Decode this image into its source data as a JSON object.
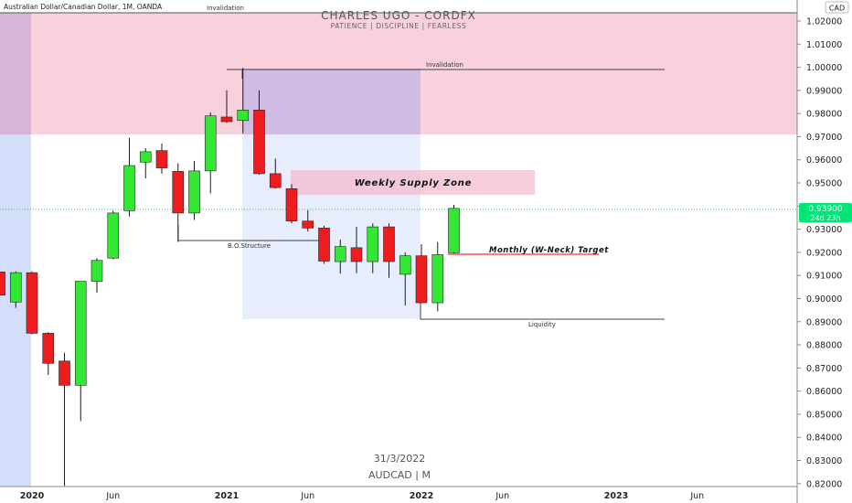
{
  "header": {
    "symbol_title": "Australian Dollar/Canadian Dollar, 1M, OANDA",
    "watermark_title": "CHARLES UGO - CORDFX",
    "watermark_subtitle": "PATIENCE   |   DISCIPLINE   |   FEARLESS",
    "currency_badge": "CAD"
  },
  "footer": {
    "date": "31/3/2022",
    "symbol": "AUDCAD  |  M"
  },
  "price_label": {
    "price": "0.93900",
    "countdown": "24d 23h",
    "color": "#00e676"
  },
  "colors": {
    "up": "#33e833",
    "down": "#ee1c1c",
    "wick": "#1a1a1a",
    "supply_zone_fill": "#f5b8cb",
    "blue_zone_fill": "#d3defa",
    "purple_overlap": "#d9b8e0"
  },
  "annotations": {
    "invalidation_top": "Invalidation",
    "invalidation_mid": "Invalidation",
    "weekly_supply_zone": "Weekly Supply Zone",
    "bo_structure": "B.O.Structure",
    "monthly_target": "Monthly (W-Neck) Target",
    "liquidity": "Liquidity"
  },
  "chart_data": {
    "type": "candlestick",
    "title": "Australian Dollar/Canadian Dollar, 1M, OANDA",
    "y_axis": {
      "ticks": [
        1.02,
        1.01,
        1.0,
        0.99,
        0.98,
        0.97,
        0.96,
        0.95,
        0.94,
        0.93,
        0.92,
        0.91,
        0.9,
        0.89,
        0.88,
        0.87,
        0.86,
        0.85,
        0.84,
        0.83,
        0.82
      ],
      "range": [
        0.8175,
        1.0355
      ]
    },
    "x_axis": {
      "labels": [
        "2020",
        "Jun",
        "2021",
        "Jun",
        "2022",
        "Jun",
        "2023",
        "Jun"
      ],
      "label_months": [
        24,
        29,
        36,
        41,
        48,
        53,
        60,
        65
      ]
    },
    "candles": [
      {
        "m": 22,
        "open": 0.9115,
        "high": 0.9135,
        "low": 0.898,
        "close": 0.9015
      },
      {
        "m": 23,
        "open": 0.8985,
        "high": 0.9118,
        "low": 0.896,
        "close": 0.9112
      },
      {
        "m": 24,
        "open": 0.9112,
        "high": 0.9118,
        "low": 0.8845,
        "close": 0.885
      },
      {
        "m": 25,
        "open": 0.885,
        "high": 0.8855,
        "low": 0.867,
        "close": 0.872
      },
      {
        "m": 26,
        "open": 0.873,
        "high": 0.8765,
        "low": 0.819,
        "close": 0.8625
      },
      {
        "m": 27,
        "open": 0.8625,
        "high": 0.9075,
        "low": 0.847,
        "close": 0.9075
      },
      {
        "m": 28,
        "open": 0.9075,
        "high": 0.9175,
        "low": 0.9025,
        "close": 0.9165
      },
      {
        "m": 29,
        "open": 0.9175,
        "high": 0.938,
        "low": 0.917,
        "close": 0.937
      },
      {
        "m": 30,
        "open": 0.938,
        "high": 0.9695,
        "low": 0.9355,
        "close": 0.9575
      },
      {
        "m": 31,
        "open": 0.959,
        "high": 0.965,
        "low": 0.952,
        "close": 0.9635
      },
      {
        "m": 32,
        "open": 0.964,
        "high": 0.967,
        "low": 0.954,
        "close": 0.9565
      },
      {
        "m": 33,
        "open": 0.955,
        "high": 0.9585,
        "low": 0.9245,
        "close": 0.937
      },
      {
        "m": 34,
        "open": 0.937,
        "high": 0.9595,
        "low": 0.934,
        "close": 0.9552
      },
      {
        "m": 35,
        "open": 0.9552,
        "high": 0.9805,
        "low": 0.9455,
        "close": 0.979
      },
      {
        "m": 36,
        "open": 0.9785,
        "high": 0.99,
        "low": 0.976,
        "close": 0.9765
      },
      {
        "m": 37,
        "open": 0.977,
        "high": 0.9998,
        "low": 0.9715,
        "close": 0.9815
      },
      {
        "m": 38,
        "open": 0.9815,
        "high": 0.99,
        "low": 0.9535,
        "close": 0.954
      },
      {
        "m": 39,
        "open": 0.954,
        "high": 0.9605,
        "low": 0.9475,
        "close": 0.948
      },
      {
        "m": 40,
        "open": 0.9475,
        "high": 0.9495,
        "low": 0.9325,
        "close": 0.9335
      },
      {
        "m": 41,
        "open": 0.9335,
        "high": 0.9382,
        "low": 0.929,
        "close": 0.9305
      },
      {
        "m": 42,
        "open": 0.9305,
        "high": 0.9315,
        "low": 0.915,
        "close": 0.9162
      },
      {
        "m": 43,
        "open": 0.916,
        "high": 0.9255,
        "low": 0.9108,
        "close": 0.9225
      },
      {
        "m": 44,
        "open": 0.922,
        "high": 0.931,
        "low": 0.911,
        "close": 0.916
      },
      {
        "m": 45,
        "open": 0.916,
        "high": 0.9325,
        "low": 0.911,
        "close": 0.931
      },
      {
        "m": 46,
        "open": 0.931,
        "high": 0.9325,
        "low": 0.909,
        "close": 0.916
      },
      {
        "m": 47,
        "open": 0.9105,
        "high": 0.92,
        "low": 0.897,
        "close": 0.9185
      },
      {
        "m": 48,
        "open": 0.9185,
        "high": 0.9235,
        "low": 0.898,
        "close": 0.8982
      },
      {
        "m": 49,
        "open": 0.8982,
        "high": 0.9245,
        "low": 0.8945,
        "close": 0.919
      },
      {
        "m": 50,
        "open": 0.9198,
        "high": 0.9405,
        "low": 0.9195,
        "close": 0.939
      }
    ]
  }
}
